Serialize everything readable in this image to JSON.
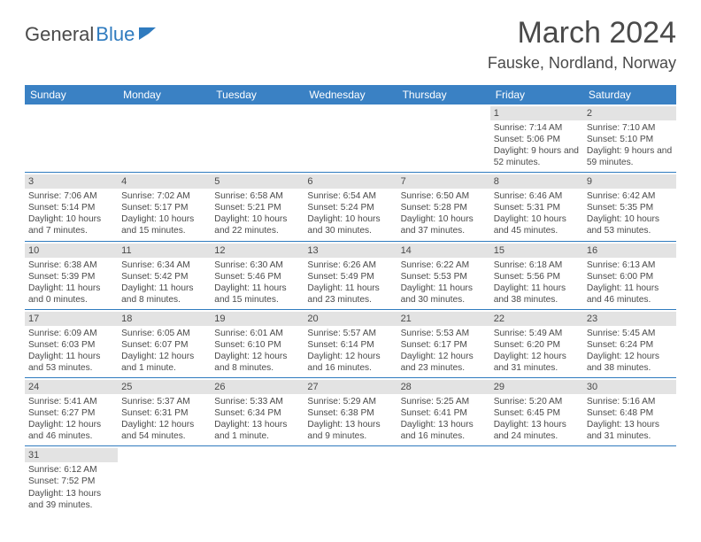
{
  "logo": {
    "text1": "General",
    "text2": "Blue"
  },
  "title": "March 2024",
  "location": "Fauske, Nordland, Norway",
  "colors": {
    "header_bg": "#3a81c4",
    "header_text": "#ffffff",
    "row_divider": "#2f7bbf",
    "daynum_bg": "#e3e3e3",
    "text": "#4a4a4a"
  },
  "day_names": [
    "Sunday",
    "Monday",
    "Tuesday",
    "Wednesday",
    "Thursday",
    "Friday",
    "Saturday"
  ],
  "weeks": [
    [
      null,
      null,
      null,
      null,
      null,
      {
        "n": "1",
        "sr": "7:14 AM",
        "ss": "5:06 PM",
        "dl": "9 hours and 52 minutes."
      },
      {
        "n": "2",
        "sr": "7:10 AM",
        "ss": "5:10 PM",
        "dl": "9 hours and 59 minutes."
      }
    ],
    [
      {
        "n": "3",
        "sr": "7:06 AM",
        "ss": "5:14 PM",
        "dl": "10 hours and 7 minutes."
      },
      {
        "n": "4",
        "sr": "7:02 AM",
        "ss": "5:17 PM",
        "dl": "10 hours and 15 minutes."
      },
      {
        "n": "5",
        "sr": "6:58 AM",
        "ss": "5:21 PM",
        "dl": "10 hours and 22 minutes."
      },
      {
        "n": "6",
        "sr": "6:54 AM",
        "ss": "5:24 PM",
        "dl": "10 hours and 30 minutes."
      },
      {
        "n": "7",
        "sr": "6:50 AM",
        "ss": "5:28 PM",
        "dl": "10 hours and 37 minutes."
      },
      {
        "n": "8",
        "sr": "6:46 AM",
        "ss": "5:31 PM",
        "dl": "10 hours and 45 minutes."
      },
      {
        "n": "9",
        "sr": "6:42 AM",
        "ss": "5:35 PM",
        "dl": "10 hours and 53 minutes."
      }
    ],
    [
      {
        "n": "10",
        "sr": "6:38 AM",
        "ss": "5:39 PM",
        "dl": "11 hours and 0 minutes."
      },
      {
        "n": "11",
        "sr": "6:34 AM",
        "ss": "5:42 PM",
        "dl": "11 hours and 8 minutes."
      },
      {
        "n": "12",
        "sr": "6:30 AM",
        "ss": "5:46 PM",
        "dl": "11 hours and 15 minutes."
      },
      {
        "n": "13",
        "sr": "6:26 AM",
        "ss": "5:49 PM",
        "dl": "11 hours and 23 minutes."
      },
      {
        "n": "14",
        "sr": "6:22 AM",
        "ss": "5:53 PM",
        "dl": "11 hours and 30 minutes."
      },
      {
        "n": "15",
        "sr": "6:18 AM",
        "ss": "5:56 PM",
        "dl": "11 hours and 38 minutes."
      },
      {
        "n": "16",
        "sr": "6:13 AM",
        "ss": "6:00 PM",
        "dl": "11 hours and 46 minutes."
      }
    ],
    [
      {
        "n": "17",
        "sr": "6:09 AM",
        "ss": "6:03 PM",
        "dl": "11 hours and 53 minutes."
      },
      {
        "n": "18",
        "sr": "6:05 AM",
        "ss": "6:07 PM",
        "dl": "12 hours and 1 minute."
      },
      {
        "n": "19",
        "sr": "6:01 AM",
        "ss": "6:10 PM",
        "dl": "12 hours and 8 minutes."
      },
      {
        "n": "20",
        "sr": "5:57 AM",
        "ss": "6:14 PM",
        "dl": "12 hours and 16 minutes."
      },
      {
        "n": "21",
        "sr": "5:53 AM",
        "ss": "6:17 PM",
        "dl": "12 hours and 23 minutes."
      },
      {
        "n": "22",
        "sr": "5:49 AM",
        "ss": "6:20 PM",
        "dl": "12 hours and 31 minutes."
      },
      {
        "n": "23",
        "sr": "5:45 AM",
        "ss": "6:24 PM",
        "dl": "12 hours and 38 minutes."
      }
    ],
    [
      {
        "n": "24",
        "sr": "5:41 AM",
        "ss": "6:27 PM",
        "dl": "12 hours and 46 minutes."
      },
      {
        "n": "25",
        "sr": "5:37 AM",
        "ss": "6:31 PM",
        "dl": "12 hours and 54 minutes."
      },
      {
        "n": "26",
        "sr": "5:33 AM",
        "ss": "6:34 PM",
        "dl": "13 hours and 1 minute."
      },
      {
        "n": "27",
        "sr": "5:29 AM",
        "ss": "6:38 PM",
        "dl": "13 hours and 9 minutes."
      },
      {
        "n": "28",
        "sr": "5:25 AM",
        "ss": "6:41 PM",
        "dl": "13 hours and 16 minutes."
      },
      {
        "n": "29",
        "sr": "5:20 AM",
        "ss": "6:45 PM",
        "dl": "13 hours and 24 minutes."
      },
      {
        "n": "30",
        "sr": "5:16 AM",
        "ss": "6:48 PM",
        "dl": "13 hours and 31 minutes."
      }
    ],
    [
      {
        "n": "31",
        "sr": "6:12 AM",
        "ss": "7:52 PM",
        "dl": "13 hours and 39 minutes."
      },
      null,
      null,
      null,
      null,
      null,
      null
    ]
  ],
  "labels": {
    "sunrise": "Sunrise: ",
    "sunset": "Sunset: ",
    "daylight": "Daylight: "
  }
}
